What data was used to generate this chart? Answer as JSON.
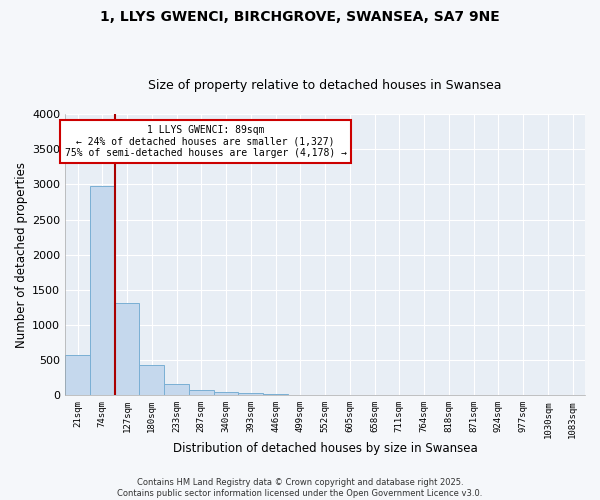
{
  "title1": "1, LLYS GWENCI, BIRCHGROVE, SWANSEA, SA7 9NE",
  "title2": "Size of property relative to detached houses in Swansea",
  "xlabel": "Distribution of detached houses by size in Swansea",
  "ylabel": "Number of detached properties",
  "categories": [
    "21sqm",
    "74sqm",
    "127sqm",
    "180sqm",
    "233sqm",
    "287sqm",
    "340sqm",
    "393sqm",
    "446sqm",
    "499sqm",
    "552sqm",
    "605sqm",
    "658sqm",
    "711sqm",
    "764sqm",
    "818sqm",
    "871sqm",
    "924sqm",
    "977sqm",
    "1030sqm",
    "1083sqm"
  ],
  "values": [
    580,
    2970,
    1320,
    430,
    160,
    80,
    50,
    30,
    25,
    10,
    0,
    0,
    0,
    0,
    0,
    0,
    0,
    0,
    0,
    0,
    0
  ],
  "bar_color": "#c5d8ed",
  "bar_edge_color": "#7aafd4",
  "vline_x": 1.5,
  "vline_color": "#aa0000",
  "ylim": [
    0,
    4000
  ],
  "yticks": [
    0,
    500,
    1000,
    1500,
    2000,
    2500,
    3000,
    3500,
    4000
  ],
  "annotation_title": "1 LLYS GWENCI: 89sqm",
  "annotation_line1": "← 24% of detached houses are smaller (1,327)",
  "annotation_line2": "75% of semi-detached houses are larger (4,178) →",
  "annotation_box_color": "#ffffff",
  "annotation_box_edge": "#cc0000",
  "fig_bg_color": "#f5f7fa",
  "axes_bg_color": "#e8eef5",
  "grid_color": "#ffffff",
  "footer1": "Contains HM Land Registry data © Crown copyright and database right 2025.",
  "footer2": "Contains public sector information licensed under the Open Government Licence v3.0.",
  "title_fontsize": 10,
  "subtitle_fontsize": 9
}
